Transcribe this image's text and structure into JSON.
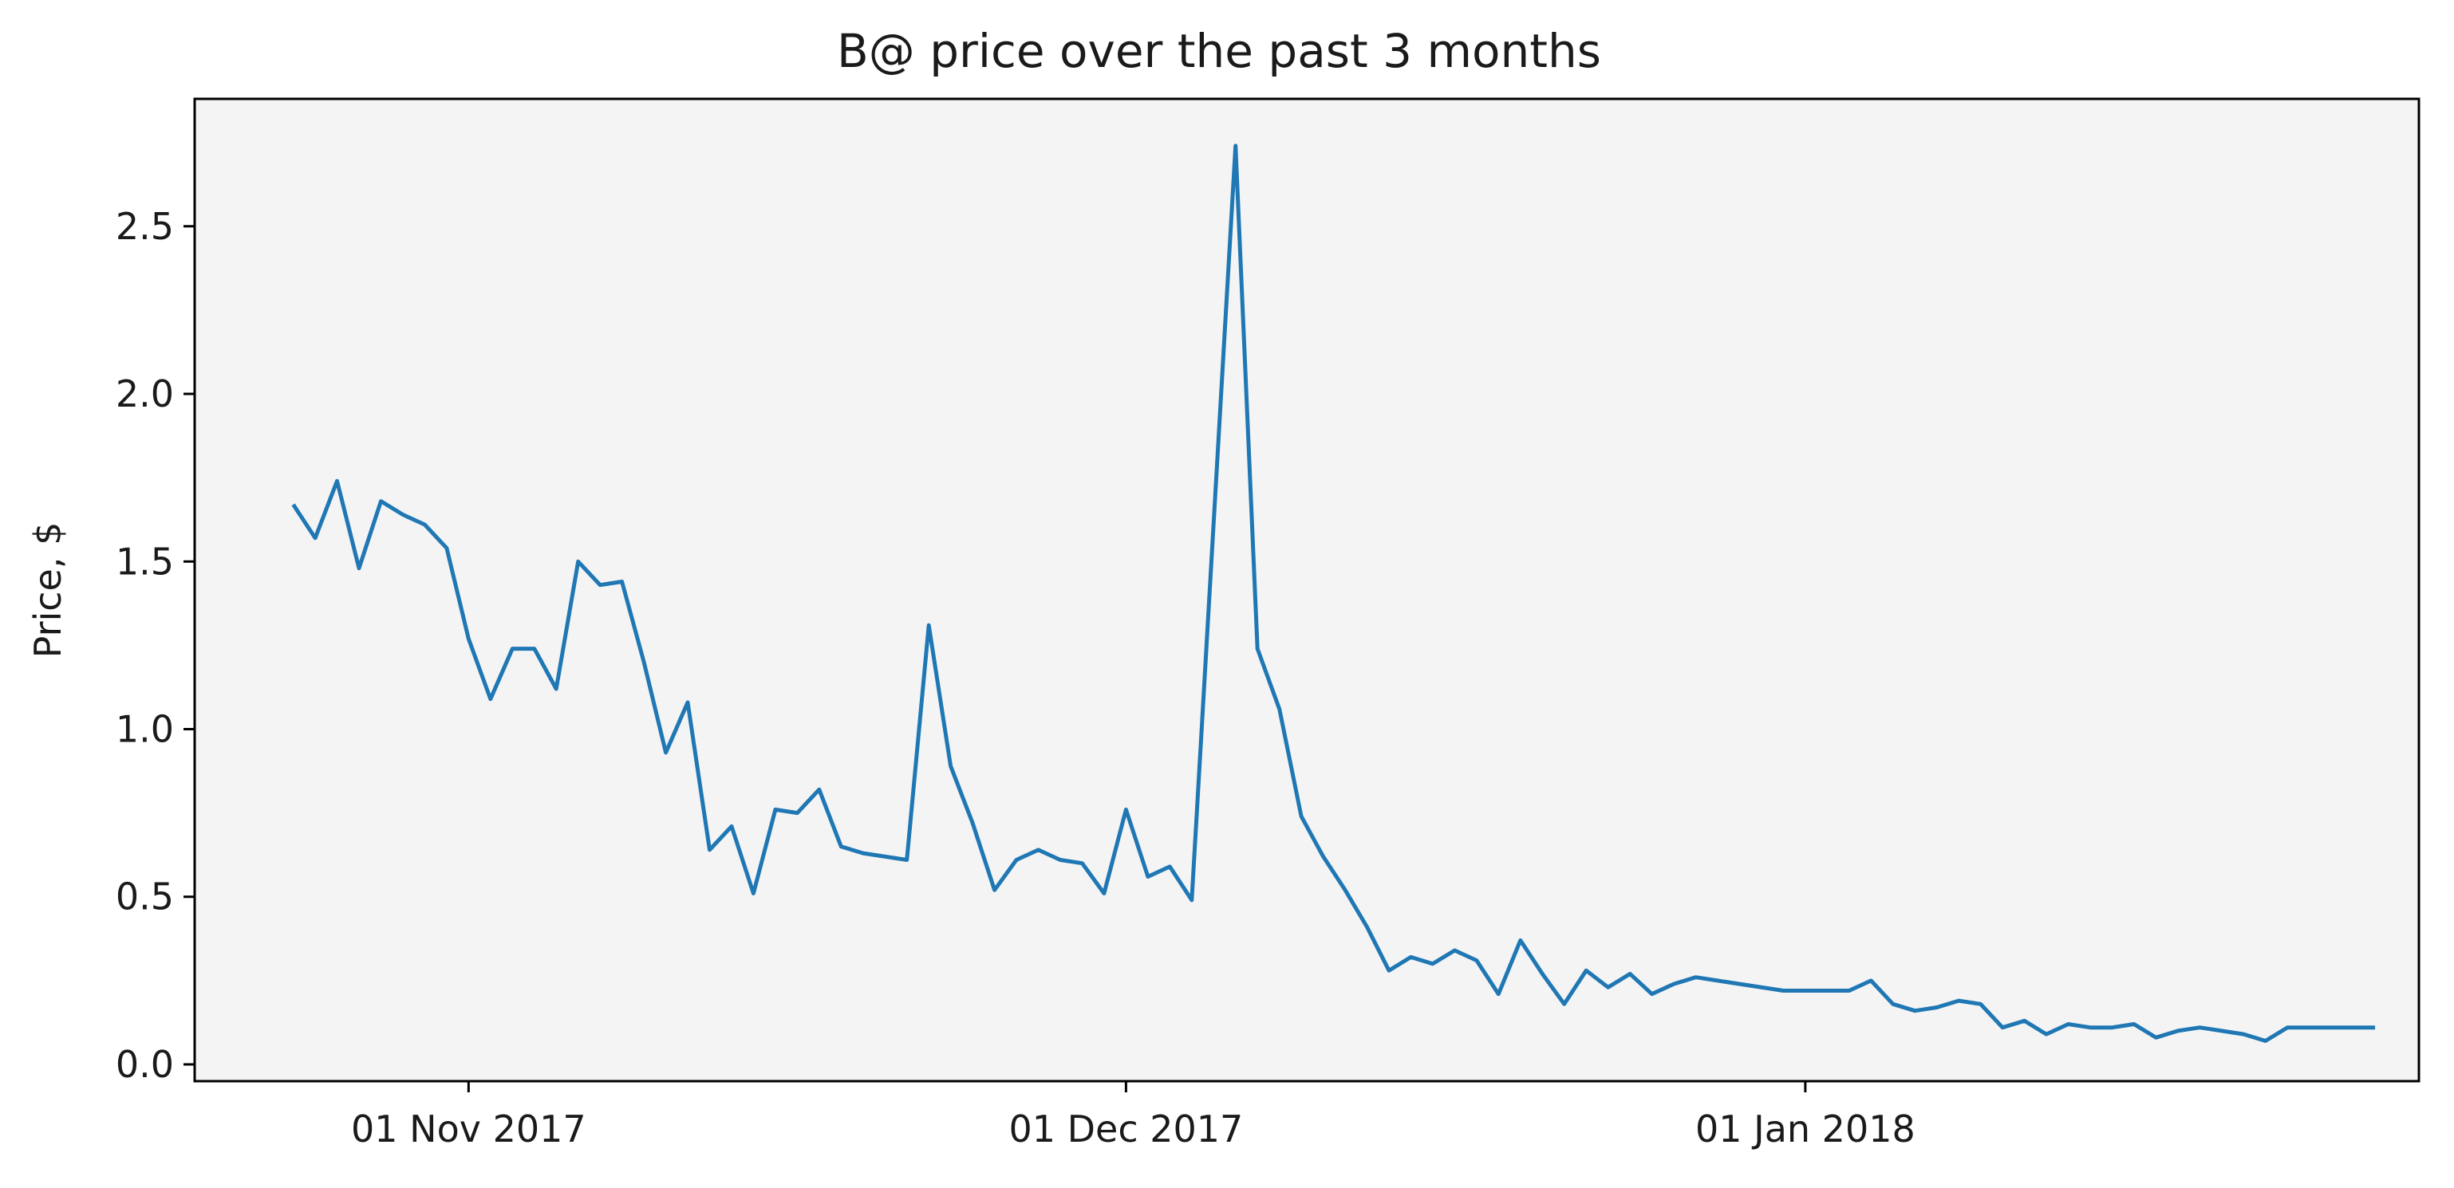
{
  "chart_data": {
    "type": "line",
    "title": "B@ price over the past 3 months",
    "xlabel": "",
    "ylabel": "Price, $",
    "ylim": [
      -0.05,
      2.88
    ],
    "yticks": [
      0.0,
      0.5,
      1.0,
      1.5,
      2.0,
      2.5
    ],
    "ytick_labels": [
      "0.0",
      "0.5",
      "1.0",
      "1.5",
      "2.0",
      "2.5"
    ],
    "xlim": [
      "2017-10-19 12:00",
      "2018-01-29"
    ],
    "xticks": [
      "2017-11-01",
      "2017-12-01",
      "2018-01-01"
    ],
    "xtick_labels": [
      "01 Nov 2017",
      "01 Dec 2017",
      "01 Jan 2018"
    ],
    "grid": false,
    "colors": {
      "line": "#1f77b4",
      "plot_background": "#f4f4f5",
      "figure_background": "#ffffff"
    },
    "series": [
      {
        "x": [
          "2017-10-24",
          "2017-10-25",
          "2017-10-26",
          "2017-10-27",
          "2017-10-28",
          "2017-10-29",
          "2017-10-30",
          "2017-10-31",
          "2017-11-01",
          "2017-11-02",
          "2017-11-03",
          "2017-11-04",
          "2017-11-05",
          "2017-11-06",
          "2017-11-07",
          "2017-11-08",
          "2017-11-09",
          "2017-11-10",
          "2017-11-11",
          "2017-11-12",
          "2017-11-13",
          "2017-11-14",
          "2017-11-15",
          "2017-11-16",
          "2017-11-17",
          "2017-11-18",
          "2017-11-19",
          "2017-11-21",
          "2017-11-22",
          "2017-11-23",
          "2017-11-24",
          "2017-11-25",
          "2017-11-26",
          "2017-11-27",
          "2017-11-28",
          "2017-11-29",
          "2017-11-30",
          "2017-12-01",
          "2017-12-02",
          "2017-12-03",
          "2017-12-04",
          "2017-12-06",
          "2017-12-07",
          "2017-12-08",
          "2017-12-09",
          "2017-12-10",
          "2017-12-11",
          "2017-12-12",
          "2017-12-13",
          "2017-12-14",
          "2017-12-15",
          "2017-12-16",
          "2017-12-17",
          "2017-12-18",
          "2017-12-19",
          "2017-12-20",
          "2017-12-21",
          "2017-12-22",
          "2017-12-23",
          "2017-12-24",
          "2017-12-25",
          "2017-12-26",
          "2017-12-27",
          "2017-12-28",
          "2017-12-29",
          "2017-12-31",
          "2018-01-01",
          "2018-01-02",
          "2018-01-03",
          "2018-01-04",
          "2018-01-05",
          "2018-01-06",
          "2018-01-07",
          "2018-01-08",
          "2018-01-09",
          "2018-01-10",
          "2018-01-11",
          "2018-01-12",
          "2018-01-13",
          "2018-01-14",
          "2018-01-15",
          "2018-01-16",
          "2018-01-17",
          "2018-01-18",
          "2018-01-19",
          "2018-01-20",
          "2018-01-21",
          "2018-01-22",
          "2018-01-23",
          "2018-01-24",
          "2018-01-25",
          "2018-01-26",
          "2018-01-27"
        ],
        "values": [
          1.67,
          1.57,
          1.74,
          1.48,
          1.68,
          1.64,
          1.61,
          1.54,
          1.27,
          1.09,
          1.24,
          1.24,
          1.12,
          1.5,
          1.43,
          1.44,
          1.2,
          0.93,
          1.08,
          0.64,
          0.71,
          0.51,
          0.76,
          0.75,
          0.82,
          0.65,
          0.63,
          0.61,
          1.31,
          0.89,
          0.72,
          0.52,
          0.61,
          0.64,
          0.61,
          0.6,
          0.51,
          0.76,
          0.56,
          0.59,
          0.49,
          2.74,
          1.24,
          1.06,
          0.74,
          0.62,
          0.52,
          0.41,
          0.28,
          0.32,
          0.3,
          0.34,
          0.31,
          0.21,
          0.37,
          0.27,
          0.18,
          0.28,
          0.23,
          0.27,
          0.21,
          0.24,
          0.26,
          0.25,
          0.24,
          0.22,
          0.22,
          0.22,
          0.22,
          0.25,
          0.18,
          0.16,
          0.17,
          0.19,
          0.18,
          0.11,
          0.13,
          0.09,
          0.12,
          0.11,
          0.11,
          0.12,
          0.08,
          0.1,
          0.11,
          0.1,
          0.09,
          0.07,
          0.11,
          0.11,
          0.11,
          0.11,
          0.11
        ]
      }
    ]
  }
}
